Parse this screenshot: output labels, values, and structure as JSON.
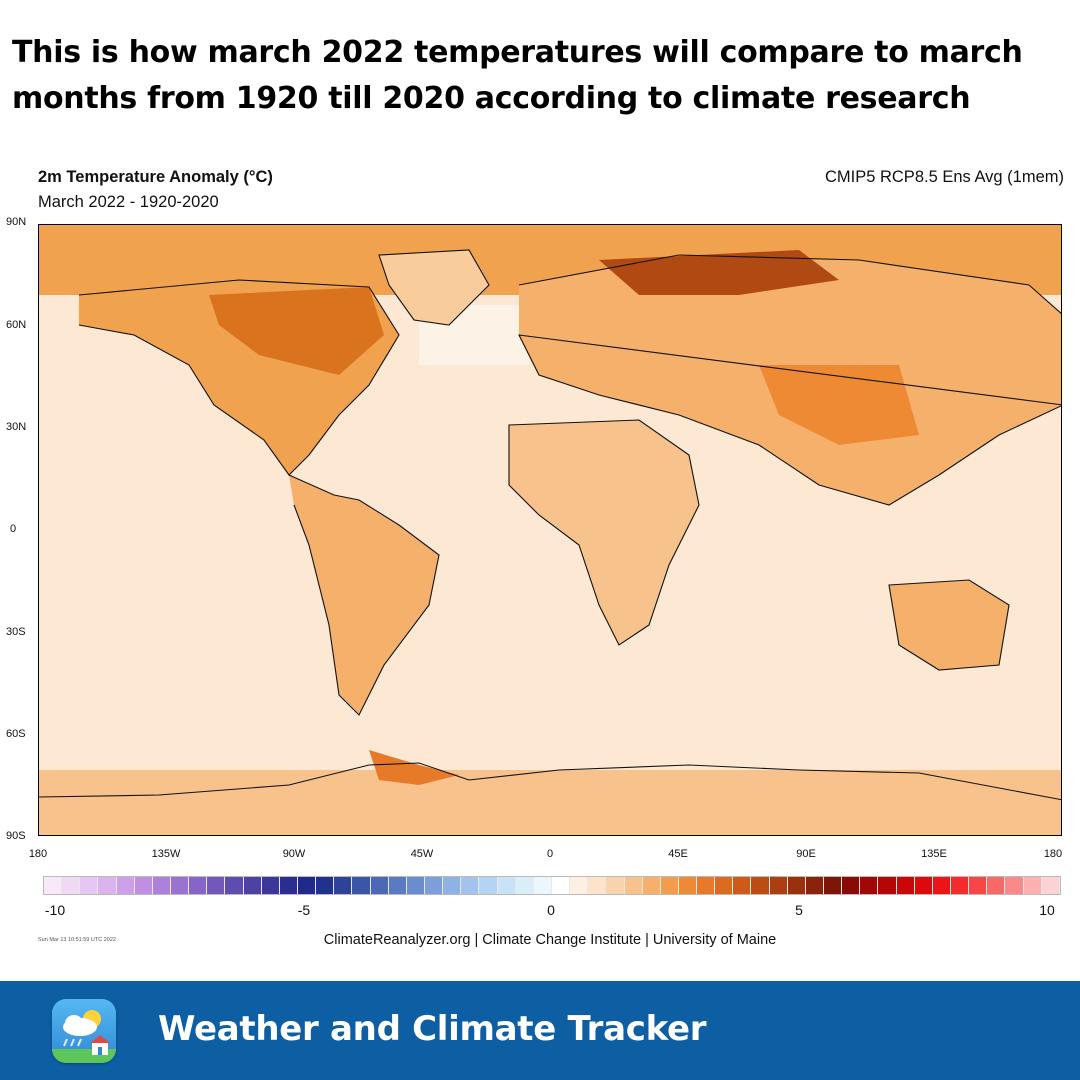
{
  "headline": "This is how march 2022 temperatures will compare to march months from 1920 till 2020 according to climate research",
  "map": {
    "title": "2m Temperature Anomaly (°C)",
    "subtitle": "March 2022 - 1920-2020",
    "model_label": "CMIP5 RCP8.5 Ens Avg (1mem)",
    "lat_labels": [
      "90N",
      "60N",
      "30N",
      "0",
      "30S",
      "60S",
      "90S"
    ],
    "lon_labels": [
      "180",
      "135W",
      "90W",
      "45W",
      "0",
      "45E",
      "90E",
      "135E",
      "180"
    ],
    "colors": {
      "ocean_base": "#fde8d3",
      "mild_warm": "#f9cc9c",
      "warm": "#f0a24f",
      "hot": "#d9731e",
      "hottest": "#b04a12"
    }
  },
  "colorbar": {
    "ticks": [
      "-10",
      "-5",
      "0",
      "5",
      "10"
    ],
    "colors": [
      "#f7e9f7",
      "#efd9f4",
      "#e6c6f2",
      "#dcb3ef",
      "#cfa0ea",
      "#c08fe4",
      "#ad80dc",
      "#9a72d2",
      "#8665c6",
      "#7258ba",
      "#5f4cae",
      "#4d42a4",
      "#3b379b",
      "#2c2d93",
      "#1f2a8c",
      "#20318f",
      "#2c4399",
      "#3a56a6",
      "#4b69b5",
      "#5a7bc2",
      "#6a8dcf",
      "#7c9fdb",
      "#8eb2e6",
      "#a1c3ee",
      "#b5d4f4",
      "#c8e2f8",
      "#daeefa",
      "#ecf6fd",
      "#ffffff",
      "#fdf0e2",
      "#fce3c9",
      "#f9d3ab",
      "#f7c28c",
      "#f5b06c",
      "#f29d4c",
      "#ee8a33",
      "#e77a28",
      "#db6b1f",
      "#cd5b17",
      "#bd4c12",
      "#ac3e0f",
      "#9b300c",
      "#8a2309",
      "#7d1606",
      "#8c0a05",
      "#a00705",
      "#b50606",
      "#c90707",
      "#dc0a0a",
      "#ec1515",
      "#f52a2a",
      "#f84646",
      "#f96767",
      "#fa8a8a",
      "#fcb0b0",
      "#fdd2d2"
    ]
  },
  "timestamp": "Sun Mar 13 10:51:59 UTC 2022",
  "credit": "ClimateReanalyzer.org | Climate Change Institute | University of Maine",
  "footer": {
    "title": "Weather and Climate Tracker",
    "icon_name": "weather-app-icon"
  }
}
